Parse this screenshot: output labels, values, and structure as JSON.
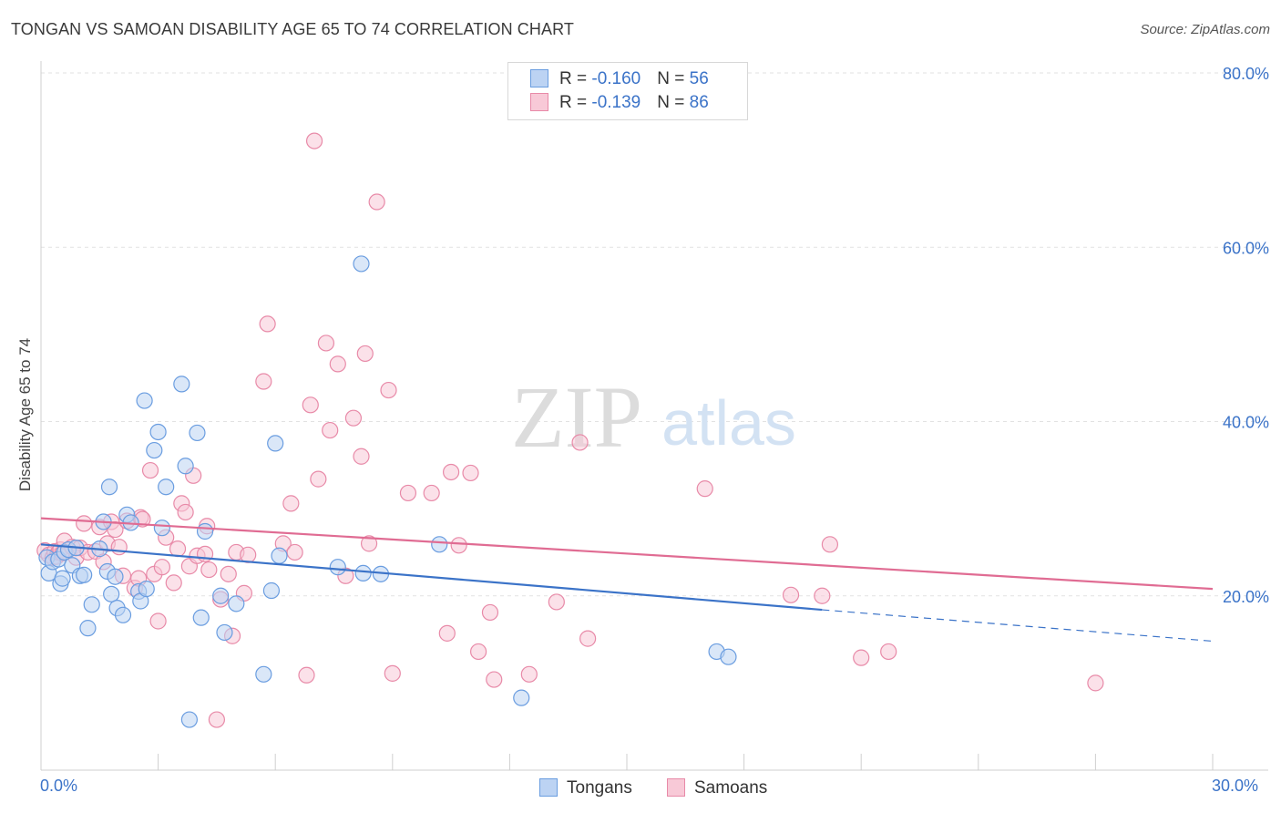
{
  "header": {
    "title": "TONGAN VS SAMOAN DISABILITY AGE 65 TO 74 CORRELATION CHART",
    "source": "Source: ZipAtlas.com"
  },
  "watermark": {
    "zip": "ZIP",
    "atlas": "atlas"
  },
  "legend": {
    "rows": [
      {
        "r_label": "R = ",
        "r_value": "-0.160",
        "n_label": "N = ",
        "n_value": "56",
        "color": "#6a9de0",
        "fill": "#bcd3f3"
      },
      {
        "r_label": "R = ",
        "r_value": "-0.139",
        "n_label": "N = ",
        "n_value": "86",
        "color": "#e88aa8",
        "fill": "#f8c9d7"
      }
    ]
  },
  "bottom_legend": {
    "tongans": "Tongans",
    "samoans": "Samoans"
  },
  "axis_labels": {
    "x_min": "0.0%",
    "x_max": "30.0%"
  },
  "chart_data": {
    "type": "scatter",
    "title": "TONGAN VS SAMOAN DISABILITY AGE 65 TO 74 CORRELATION CHART",
    "xlabel": "",
    "ylabel": "Disability Age 65 to 74",
    "xlim": [
      0,
      30
    ],
    "ylim": [
      0,
      80
    ],
    "y_ticks": [
      20,
      40,
      60,
      80
    ],
    "y_tick_labels": [
      "20.0%",
      "40.0%",
      "60.0%",
      "80.0%"
    ],
    "x_tick_labels": [
      "0.0%",
      "30.0%"
    ],
    "grid": true,
    "legend_position": "top-center",
    "series": [
      {
        "name": "Tongans",
        "color": "#3b73c8",
        "marker_fill": "#bcd3f3",
        "marker_stroke": "#6a9de0",
        "points": [
          [
            0.15,
            24.4
          ],
          [
            0.2,
            22.6
          ],
          [
            0.3,
            23.9
          ],
          [
            0.45,
            24.2
          ],
          [
            0.5,
            21.4
          ],
          [
            0.55,
            22.0
          ],
          [
            0.6,
            25.0
          ],
          [
            0.7,
            25.3
          ],
          [
            0.8,
            23.5
          ],
          [
            0.9,
            25.5
          ],
          [
            1.0,
            22.3
          ],
          [
            1.1,
            22.4
          ],
          [
            1.2,
            16.3
          ],
          [
            1.3,
            19.0
          ],
          [
            1.5,
            25.4
          ],
          [
            1.6,
            28.5
          ],
          [
            1.7,
            22.8
          ],
          [
            1.75,
            32.5
          ],
          [
            1.8,
            20.2
          ],
          [
            1.9,
            22.2
          ],
          [
            1.95,
            18.6
          ],
          [
            2.1,
            17.8
          ],
          [
            2.2,
            29.3
          ],
          [
            2.3,
            28.4
          ],
          [
            2.5,
            20.5
          ],
          [
            2.55,
            19.4
          ],
          [
            2.65,
            42.4
          ],
          [
            2.7,
            20.8
          ],
          [
            2.9,
            36.7
          ],
          [
            3.0,
            38.8
          ],
          [
            3.1,
            27.8
          ],
          [
            3.2,
            32.5
          ],
          [
            3.6,
            44.3
          ],
          [
            3.7,
            34.9
          ],
          [
            3.8,
            5.8
          ],
          [
            4.0,
            38.7
          ],
          [
            4.1,
            17.5
          ],
          [
            4.2,
            27.4
          ],
          [
            4.6,
            20.0
          ],
          [
            4.7,
            15.8
          ],
          [
            5.0,
            19.1
          ],
          [
            5.7,
            11.0
          ],
          [
            5.9,
            20.6
          ],
          [
            6.0,
            37.5
          ],
          [
            6.1,
            24.6
          ],
          [
            7.6,
            23.3
          ],
          [
            8.2,
            58.1
          ],
          [
            8.25,
            22.6
          ],
          [
            8.7,
            22.5
          ],
          [
            10.2,
            25.9
          ],
          [
            12.3,
            8.3
          ],
          [
            17.3,
            13.6
          ],
          [
            17.6,
            13.0
          ]
        ],
        "trend": {
          "x": [
            0,
            20
          ],
          "y": [
            25.9,
            18.4
          ]
        },
        "trend_extension": {
          "x": [
            20,
            30
          ],
          "y": [
            18.4,
            14.8
          ]
        }
      },
      {
        "name": "Samoans",
        "color": "#e06c93",
        "marker_fill": "#f8c9d7",
        "marker_stroke": "#e88aa8",
        "points": [
          [
            0.1,
            25.2
          ],
          [
            0.2,
            24.7
          ],
          [
            0.3,
            24.4
          ],
          [
            0.35,
            25.1
          ],
          [
            0.4,
            24.5
          ],
          [
            0.45,
            25.0
          ],
          [
            0.5,
            25.3
          ],
          [
            0.55,
            24.9
          ],
          [
            0.6,
            26.3
          ],
          [
            0.8,
            25.6
          ],
          [
            0.9,
            24.4
          ],
          [
            1.0,
            25.5
          ],
          [
            1.1,
            28.3
          ],
          [
            1.2,
            25.0
          ],
          [
            1.4,
            25.1
          ],
          [
            1.5,
            27.9
          ],
          [
            1.6,
            23.9
          ],
          [
            1.7,
            26.0
          ],
          [
            1.8,
            28.5
          ],
          [
            1.9,
            27.6
          ],
          [
            2.0,
            25.6
          ],
          [
            2.1,
            22.3
          ],
          [
            2.2,
            28.6
          ],
          [
            2.4,
            20.9
          ],
          [
            2.5,
            22.0
          ],
          [
            2.55,
            29.0
          ],
          [
            2.6,
            28.8
          ],
          [
            2.8,
            34.4
          ],
          [
            2.9,
            22.5
          ],
          [
            3.0,
            17.1
          ],
          [
            3.1,
            23.3
          ],
          [
            3.2,
            26.7
          ],
          [
            3.4,
            21.5
          ],
          [
            3.5,
            25.4
          ],
          [
            3.6,
            30.6
          ],
          [
            3.7,
            29.6
          ],
          [
            3.8,
            23.4
          ],
          [
            3.9,
            33.8
          ],
          [
            4.0,
            24.6
          ],
          [
            4.2,
            24.8
          ],
          [
            4.25,
            28.0
          ],
          [
            4.3,
            23.0
          ],
          [
            4.5,
            5.8
          ],
          [
            4.6,
            19.6
          ],
          [
            4.8,
            22.5
          ],
          [
            4.9,
            15.4
          ],
          [
            5.0,
            25.0
          ],
          [
            5.2,
            20.3
          ],
          [
            5.3,
            24.7
          ],
          [
            5.7,
            44.6
          ],
          [
            5.8,
            51.2
          ],
          [
            6.2,
            26.0
          ],
          [
            6.4,
            30.6
          ],
          [
            6.5,
            25.0
          ],
          [
            6.8,
            10.9
          ],
          [
            6.9,
            41.9
          ],
          [
            7.0,
            72.2
          ],
          [
            7.1,
            33.4
          ],
          [
            7.3,
            49.0
          ],
          [
            7.4,
            39.0
          ],
          [
            7.6,
            46.6
          ],
          [
            7.8,
            22.3
          ],
          [
            8.0,
            40.4
          ],
          [
            8.2,
            36.0
          ],
          [
            8.3,
            47.8
          ],
          [
            8.4,
            26.0
          ],
          [
            8.6,
            65.2
          ],
          [
            8.9,
            43.6
          ],
          [
            9.0,
            11.1
          ],
          [
            9.4,
            31.8
          ],
          [
            10.0,
            31.8
          ],
          [
            10.4,
            15.7
          ],
          [
            10.5,
            34.2
          ],
          [
            10.7,
            25.8
          ],
          [
            11.0,
            34.1
          ],
          [
            11.2,
            13.6
          ],
          [
            11.5,
            18.1
          ],
          [
            11.6,
            10.4
          ],
          [
            12.5,
            11.0
          ],
          [
            13.2,
            19.3
          ],
          [
            13.8,
            37.6
          ],
          [
            14.0,
            15.1
          ],
          [
            17.0,
            32.3
          ],
          [
            19.2,
            20.1
          ],
          [
            20.0,
            20.0
          ],
          [
            20.2,
            25.9
          ],
          [
            21.0,
            12.9
          ],
          [
            21.7,
            13.6
          ],
          [
            27.0,
            10.0
          ]
        ],
        "trend": {
          "x": [
            0,
            30
          ],
          "y": [
            28.9,
            20.8
          ]
        }
      }
    ]
  }
}
